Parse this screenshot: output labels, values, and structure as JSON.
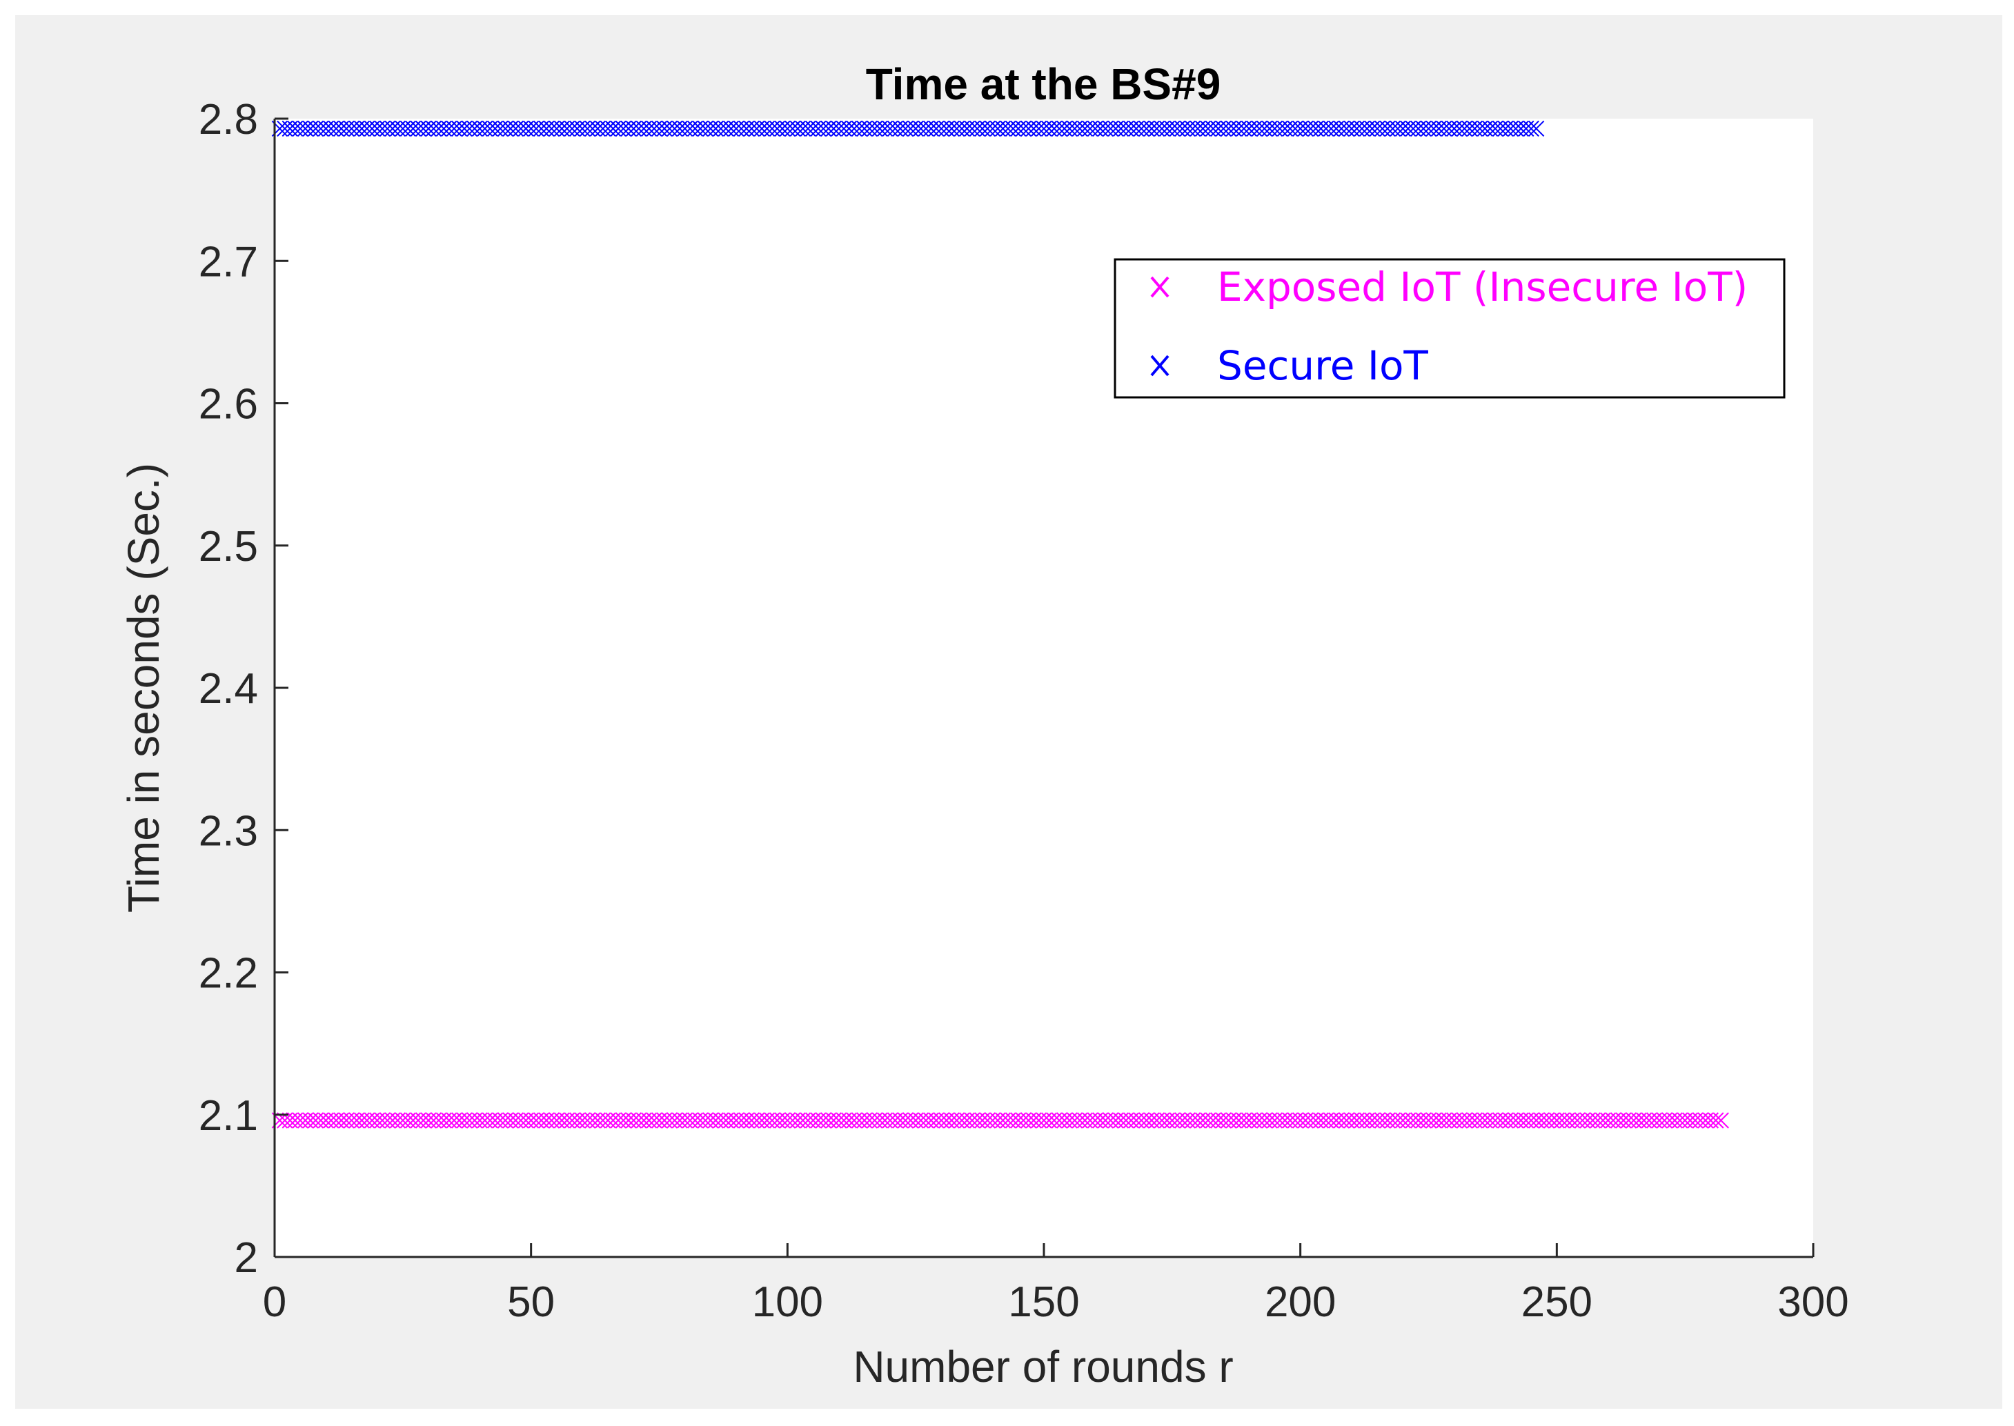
{
  "chart_data": {
    "type": "scatter",
    "title": "Time at the BS#9",
    "xlabel": "Number of rounds r",
    "ylabel": "Time in seconds (Sec.)",
    "xlim": [
      0,
      300
    ],
    "ylim": [
      2,
      2.8
    ],
    "xticks": [
      "0",
      "50",
      "100",
      "150",
      "200",
      "250",
      "300"
    ],
    "yticks": [
      "2",
      "2.1",
      "2.2",
      "2.3",
      "2.4",
      "2.5",
      "2.6",
      "2.7",
      "2.8"
    ],
    "grid": false,
    "legend_position": "top-right",
    "marker": "x",
    "series": [
      {
        "name": "Exposed IoT (Insecure IoT)",
        "color": "#ff00ff",
        "x_start": 1,
        "x_end": 282,
        "y": 2.096
      },
      {
        "name": "Secure IoT",
        "color": "#0000ff",
        "x_start": 1,
        "x_end": 246,
        "y": 2.793
      }
    ]
  }
}
